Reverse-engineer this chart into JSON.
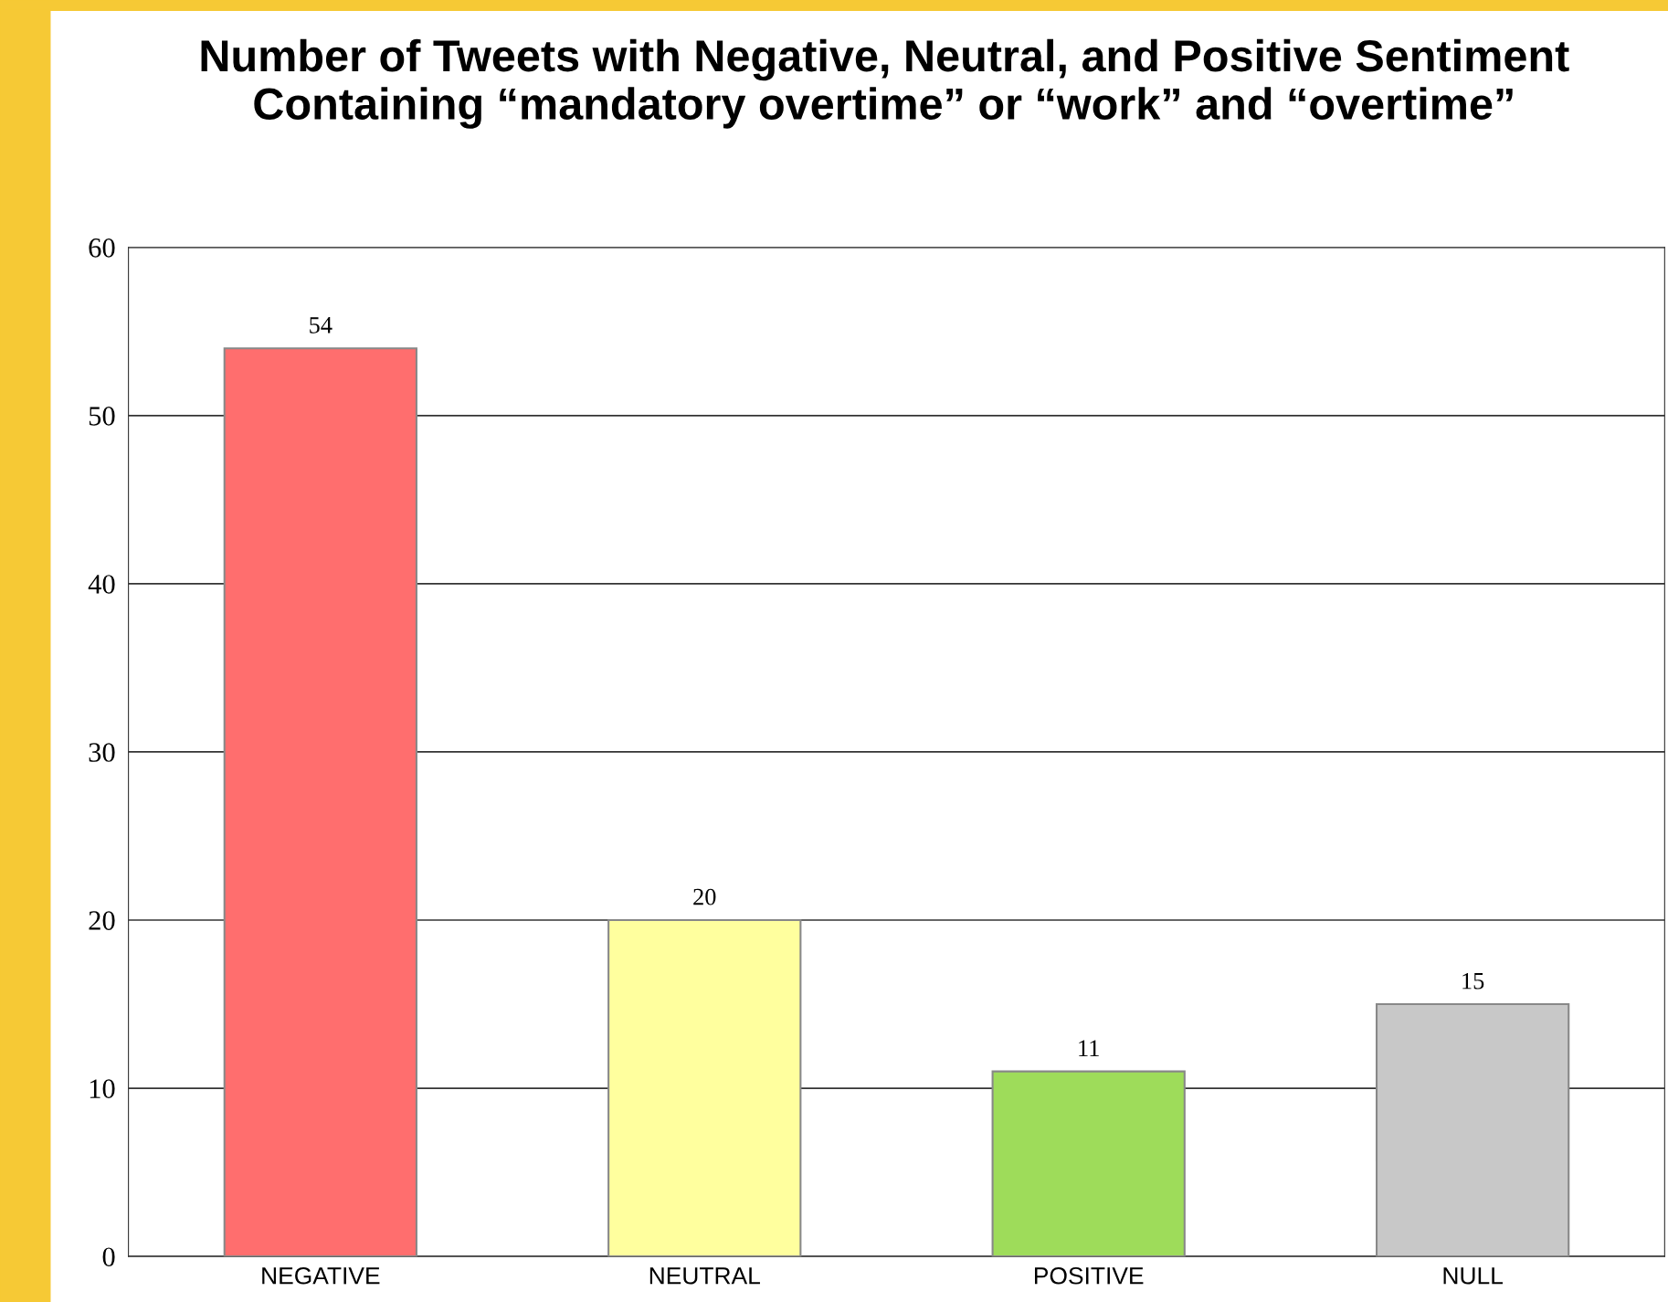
{
  "chart_data": {
    "type": "bar",
    "title": "Number of Tweets with Negative, Neutral, and Positive Sentiment Containing “mandatory overtime” or “work” and “overtime”",
    "categories": [
      "NEGATIVE",
      "NEUTRAL",
      "POSITIVE",
      "NULL"
    ],
    "values": [
      54,
      20,
      11,
      15
    ],
    "colors": [
      "#ff6e6e",
      "#ffff9e",
      "#9edc5a",
      "#c8c8c8"
    ],
    "ylim": [
      0,
      60
    ],
    "yticks": [
      0,
      10,
      20,
      30,
      40,
      50,
      60
    ],
    "grid": "y",
    "data_labels": true,
    "legend": false
  }
}
